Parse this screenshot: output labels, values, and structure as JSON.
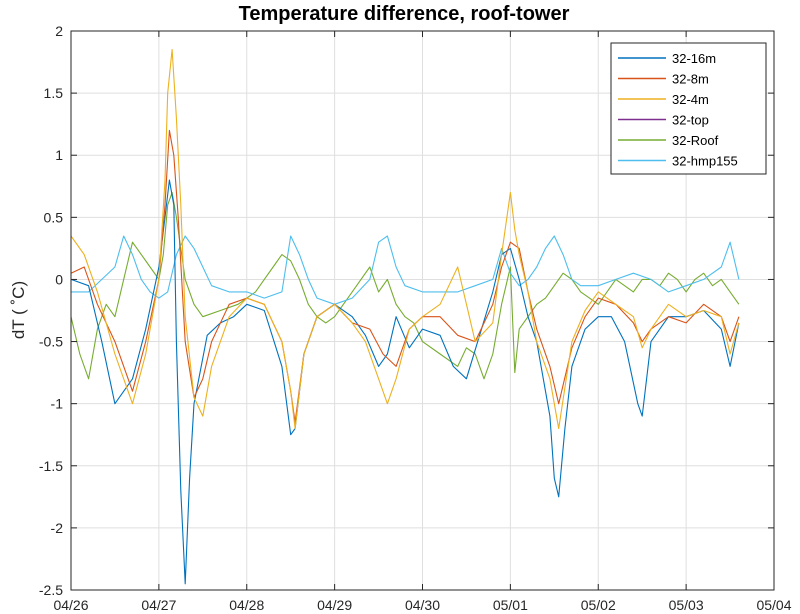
{
  "chart_data": {
    "type": "line",
    "title": "Temperature difference, roof-tower",
    "xlabel": "",
    "ylabel": "dT ( ˚C)",
    "x_ticks": [
      "04/26",
      "04/27",
      "04/28",
      "04/29",
      "04/30",
      "05/01",
      "05/02",
      "05/03",
      "05/04"
    ],
    "xlim": [
      0,
      8
    ],
    "y_ticks": [
      "2",
      "1.5",
      "1",
      "0.5",
      "0",
      "-0.5",
      "-1",
      "-1.5",
      "-2",
      "-2.5"
    ],
    "ylim": [
      -2.5,
      2
    ],
    "grid": true,
    "legend_position": "top-right",
    "series": [
      {
        "name": "32-16m",
        "color": "#0072BD",
        "x": [
          0,
          0.2,
          0.35,
          0.5,
          0.7,
          0.85,
          1.0,
          1.07,
          1.12,
          1.17,
          1.2,
          1.25,
          1.3,
          1.35,
          1.4,
          1.55,
          1.7,
          1.85,
          2.0,
          2.2,
          2.4,
          2.5,
          2.55,
          2.65,
          2.8,
          3.0,
          3.2,
          3.35,
          3.5,
          3.6,
          3.7,
          3.85,
          4.0,
          4.2,
          4.35,
          4.5,
          4.65,
          4.8,
          4.9,
          5.0,
          5.1,
          5.2,
          5.3,
          5.45,
          5.5,
          5.55,
          5.62,
          5.7,
          5.85,
          6.0,
          6.15,
          6.3,
          6.45,
          6.5,
          6.6,
          6.8,
          7.0,
          7.2,
          7.4,
          7.5,
          7.6
        ],
        "y": [
          0.0,
          -0.05,
          -0.5,
          -1.0,
          -0.8,
          -0.4,
          0.1,
          0.5,
          0.8,
          0.6,
          -0.5,
          -1.7,
          -2.45,
          -1.6,
          -1.0,
          -0.45,
          -0.35,
          -0.3,
          -0.2,
          -0.25,
          -0.7,
          -1.25,
          -1.2,
          -0.6,
          -0.3,
          -0.2,
          -0.3,
          -0.45,
          -0.7,
          -0.6,
          -0.3,
          -0.55,
          -0.4,
          -0.45,
          -0.7,
          -0.8,
          -0.45,
          -0.1,
          0.2,
          0.25,
          0.0,
          -0.3,
          -0.5,
          -1.1,
          -1.6,
          -1.75,
          -1.2,
          -0.7,
          -0.4,
          -0.3,
          -0.3,
          -0.5,
          -1.0,
          -1.1,
          -0.5,
          -0.3,
          -0.3,
          -0.25,
          -0.4,
          -0.7,
          -0.35
        ]
      },
      {
        "name": "32-8m",
        "color": "#D95319",
        "x": [
          0,
          0.15,
          0.3,
          0.5,
          0.7,
          0.85,
          1.0,
          1.07,
          1.12,
          1.17,
          1.22,
          1.3,
          1.4,
          1.5,
          1.6,
          1.8,
          2.0,
          2.2,
          2.4,
          2.5,
          2.55,
          2.65,
          2.8,
          3.0,
          3.2,
          3.4,
          3.55,
          3.7,
          3.85,
          4.0,
          4.2,
          4.4,
          4.6,
          4.8,
          4.9,
          5.0,
          5.1,
          5.2,
          5.3,
          5.45,
          5.55,
          5.7,
          5.85,
          6.0,
          6.2,
          6.4,
          6.5,
          6.6,
          6.8,
          7.0,
          7.2,
          7.4,
          7.5,
          7.6
        ],
        "y": [
          0.05,
          0.1,
          -0.2,
          -0.5,
          -0.9,
          -0.5,
          0.0,
          0.6,
          1.2,
          1.0,
          0.5,
          -0.5,
          -0.95,
          -0.8,
          -0.5,
          -0.2,
          -0.15,
          -0.2,
          -0.5,
          -0.9,
          -1.15,
          -0.6,
          -0.3,
          -0.2,
          -0.35,
          -0.4,
          -0.6,
          -0.7,
          -0.4,
          -0.3,
          -0.3,
          -0.45,
          -0.5,
          -0.2,
          0.1,
          0.3,
          0.25,
          -0.1,
          -0.4,
          -0.7,
          -1.0,
          -0.55,
          -0.3,
          -0.15,
          -0.2,
          -0.35,
          -0.5,
          -0.4,
          -0.3,
          -0.35,
          -0.2,
          -0.3,
          -0.5,
          -0.3
        ]
      },
      {
        "name": "32-4m",
        "color": "#EDB120",
        "x": [
          0,
          0.15,
          0.3,
          0.5,
          0.7,
          0.85,
          1.0,
          1.07,
          1.1,
          1.15,
          1.2,
          1.25,
          1.3,
          1.4,
          1.5,
          1.6,
          1.8,
          2.0,
          2.2,
          2.4,
          2.5,
          2.55,
          2.65,
          2.8,
          3.0,
          3.2,
          3.35,
          3.5,
          3.6,
          3.7,
          3.85,
          4.0,
          4.2,
          4.4,
          4.6,
          4.8,
          4.9,
          5.0,
          5.05,
          5.1,
          5.2,
          5.3,
          5.45,
          5.55,
          5.7,
          5.85,
          6.0,
          6.2,
          6.4,
          6.5,
          6.6,
          6.8,
          7.0,
          7.2,
          7.4,
          7.5,
          7.6
        ],
        "y": [
          0.35,
          0.2,
          -0.1,
          -0.6,
          -1.0,
          -0.6,
          0.0,
          0.8,
          1.5,
          1.85,
          1.3,
          0.6,
          -0.3,
          -0.95,
          -1.1,
          -0.7,
          -0.3,
          -0.15,
          -0.2,
          -0.5,
          -0.9,
          -1.2,
          -0.6,
          -0.3,
          -0.2,
          -0.35,
          -0.5,
          -0.8,
          -1.0,
          -0.8,
          -0.4,
          -0.3,
          -0.2,
          0.1,
          -0.5,
          -0.35,
          0.2,
          0.7,
          0.4,
          0.2,
          -0.1,
          -0.5,
          -0.8,
          -1.2,
          -0.5,
          -0.25,
          -0.1,
          -0.2,
          -0.3,
          -0.55,
          -0.4,
          -0.2,
          -0.3,
          -0.25,
          -0.3,
          -0.6,
          -0.35
        ]
      },
      {
        "name": "32-top",
        "color": "#7E2F8E",
        "x": [],
        "y": []
      },
      {
        "name": "32-Roof",
        "color": "#77AC30",
        "x": [
          0,
          0.1,
          0.2,
          0.3,
          0.4,
          0.5,
          0.6,
          0.7,
          0.8,
          0.9,
          1.0,
          1.05,
          1.1,
          1.15,
          1.2,
          1.3,
          1.4,
          1.5,
          1.7,
          1.9,
          2.0,
          2.1,
          2.2,
          2.3,
          2.4,
          2.5,
          2.6,
          2.7,
          2.8,
          2.9,
          3.0,
          3.1,
          3.2,
          3.3,
          3.4,
          3.5,
          3.6,
          3.7,
          3.8,
          3.9,
          4.0,
          4.2,
          4.4,
          4.5,
          4.6,
          4.7,
          4.8,
          4.9,
          5.0,
          5.05,
          5.1,
          5.2,
          5.3,
          5.4,
          5.5,
          5.6,
          5.7,
          5.8,
          5.9,
          6.0,
          6.1,
          6.2,
          6.3,
          6.4,
          6.5,
          6.6,
          6.7,
          6.8,
          6.9,
          7.0,
          7.1,
          7.2,
          7.3,
          7.4,
          7.5,
          7.6
        ],
        "y": [
          -0.3,
          -0.6,
          -0.8,
          -0.4,
          -0.2,
          -0.3,
          0.0,
          0.3,
          0.2,
          0.1,
          0.0,
          0.2,
          0.6,
          0.7,
          0.5,
          0.0,
          -0.2,
          -0.3,
          -0.25,
          -0.2,
          -0.15,
          -0.1,
          0.0,
          0.1,
          0.2,
          0.15,
          0.0,
          -0.2,
          -0.3,
          -0.35,
          -0.3,
          -0.2,
          -0.1,
          0.0,
          0.1,
          -0.1,
          0.0,
          -0.2,
          -0.3,
          -0.35,
          -0.5,
          -0.6,
          -0.7,
          -0.55,
          -0.6,
          -0.8,
          -0.6,
          -0.2,
          0.1,
          -0.75,
          -0.4,
          -0.3,
          -0.2,
          -0.15,
          -0.05,
          0.05,
          0.0,
          -0.1,
          -0.15,
          -0.2,
          -0.1,
          0.0,
          -0.05,
          -0.1,
          0.0,
          0.0,
          -0.05,
          0.05,
          0.0,
          -0.1,
          0.0,
          0.05,
          -0.05,
          0.0,
          -0.1,
          -0.2
        ]
      },
      {
        "name": "32-hmp155",
        "color": "#4DBEEE",
        "x": [
          0,
          0.2,
          0.35,
          0.5,
          0.6,
          0.7,
          0.8,
          0.9,
          1.0,
          1.1,
          1.2,
          1.3,
          1.4,
          1.5,
          1.6,
          1.8,
          2.0,
          2.2,
          2.4,
          2.5,
          2.6,
          2.7,
          2.8,
          3.0,
          3.2,
          3.4,
          3.5,
          3.6,
          3.7,
          3.8,
          4.0,
          4.2,
          4.4,
          4.6,
          4.8,
          4.9,
          5.0,
          5.1,
          5.2,
          5.3,
          5.4,
          5.5,
          5.6,
          5.7,
          5.8,
          6.0,
          6.2,
          6.4,
          6.6,
          6.8,
          7.0,
          7.2,
          7.4,
          7.5,
          7.6
        ],
        "y": [
          -0.1,
          -0.1,
          0.0,
          0.1,
          0.35,
          0.2,
          0.0,
          -0.1,
          -0.15,
          -0.1,
          0.2,
          0.35,
          0.25,
          0.1,
          -0.05,
          -0.1,
          -0.1,
          -0.15,
          -0.1,
          0.35,
          0.2,
          0.0,
          -0.15,
          -0.2,
          -0.15,
          0.0,
          0.3,
          0.35,
          0.1,
          -0.05,
          -0.1,
          -0.1,
          -0.1,
          -0.05,
          0.0,
          0.25,
          0.05,
          -0.05,
          0.0,
          0.1,
          0.25,
          0.35,
          0.2,
          0.0,
          -0.05,
          -0.05,
          0.0,
          0.05,
          0.0,
          -0.1,
          -0.05,
          0.0,
          0.1,
          0.3,
          0.0
        ]
      }
    ]
  }
}
